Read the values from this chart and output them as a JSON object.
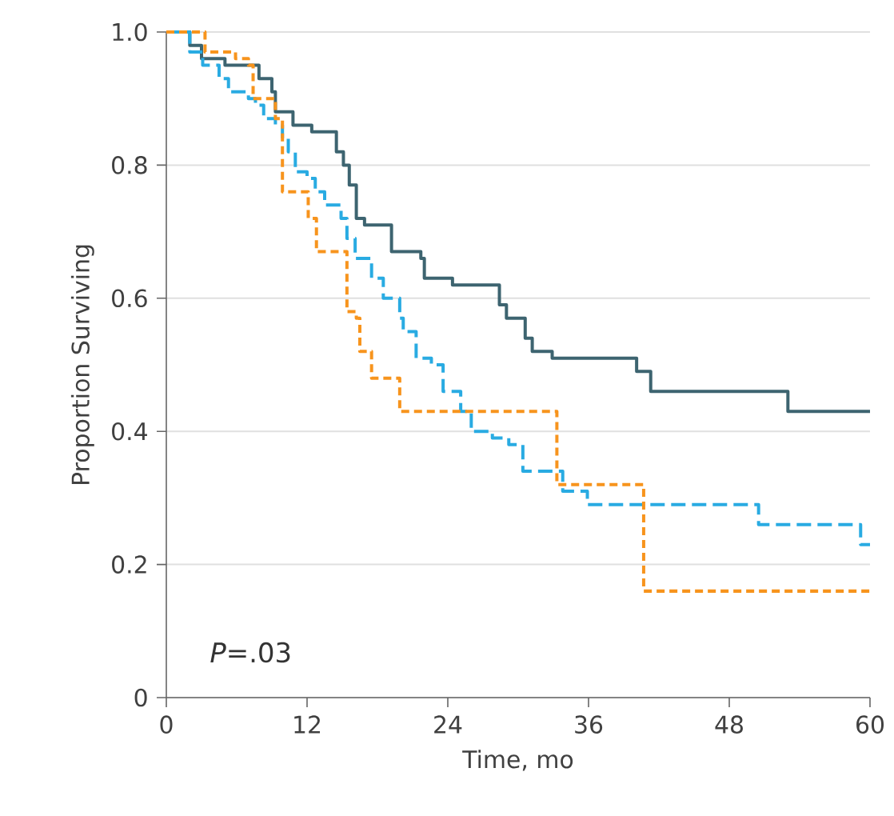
{
  "chart_data": {
    "type": "step",
    "xlabel": "Time, mo",
    "ylabel": "Proportion Surviving",
    "xlim": [
      0,
      60
    ],
    "xticks": [
      0,
      12,
      24,
      36,
      48,
      60
    ],
    "ylim": [
      0,
      1
    ],
    "yticks": [
      0,
      0.2,
      0.4,
      0.6,
      0.8,
      {
        "value": 1,
        "label": "1.0"
      }
    ],
    "grid": "y",
    "marker": "none",
    "annotations": [
      "*P*=.03"
    ],
    "series": [
      {
        "color": "#3d6470",
        "line_style": "solid",
        "x": [
          0,
          2,
          3,
          5,
          7.9,
          9,
          9.3,
          10.8,
          12.4,
          14.5,
          15.1,
          15.6,
          16.2,
          16.9,
          19.2,
          21.7,
          22,
          24.4,
          28.4,
          29,
          30.6,
          31.2,
          32.9,
          40.1,
          41.3,
          53,
          60
        ],
        "values": [
          1.0,
          0.98,
          0.96,
          0.95,
          0.93,
          0.91,
          0.88,
          0.86,
          0.85,
          0.82,
          0.8,
          0.77,
          0.72,
          0.71,
          0.67,
          0.66,
          0.63,
          0.62,
          0.59,
          0.57,
          0.54,
          0.52,
          0.51,
          0.49,
          0.46,
          0.43,
          0.43
        ]
      },
      {
        "color": "#29abe2",
        "line_style": "dashed",
        "x": [
          0,
          2,
          3.1,
          4.5,
          5.3,
          7,
          7.6,
          8.3,
          9.3,
          9.9,
          10.4,
          11,
          12,
          12.7,
          13.5,
          14.9,
          15.4,
          16.1,
          17.5,
          18.5,
          19.9,
          20.2,
          21.3,
          22.6,
          23.6,
          25.1,
          26,
          27.8,
          29.2,
          30.4,
          33.8,
          35.9,
          50.5,
          59.2,
          60
        ],
        "values": [
          1.0,
          0.97,
          0.95,
          0.93,
          0.91,
          0.9,
          0.89,
          0.87,
          0.86,
          0.84,
          0.82,
          0.79,
          0.78,
          0.76,
          0.74,
          0.72,
          0.69,
          0.66,
          0.63,
          0.6,
          0.57,
          0.55,
          0.51,
          0.5,
          0.46,
          0.43,
          0.4,
          0.39,
          0.38,
          0.34,
          0.31,
          0.29,
          0.26,
          0.23,
          0.23
        ]
      },
      {
        "color": "#f7941d",
        "line_style": "dotted",
        "x": [
          0,
          3.3,
          5.9,
          7,
          7.4,
          9.3,
          9.9,
          12.1,
          12.8,
          15.4,
          16.2,
          16.5,
          17.5,
          19.9,
          33.3,
          40.7,
          60
        ],
        "values": [
          1.0,
          0.97,
          0.96,
          0.95,
          0.9,
          0.87,
          0.76,
          0.72,
          0.67,
          0.58,
          0.57,
          0.52,
          0.48,
          0.43,
          0.32,
          0.16,
          0.16
        ]
      }
    ]
  }
}
